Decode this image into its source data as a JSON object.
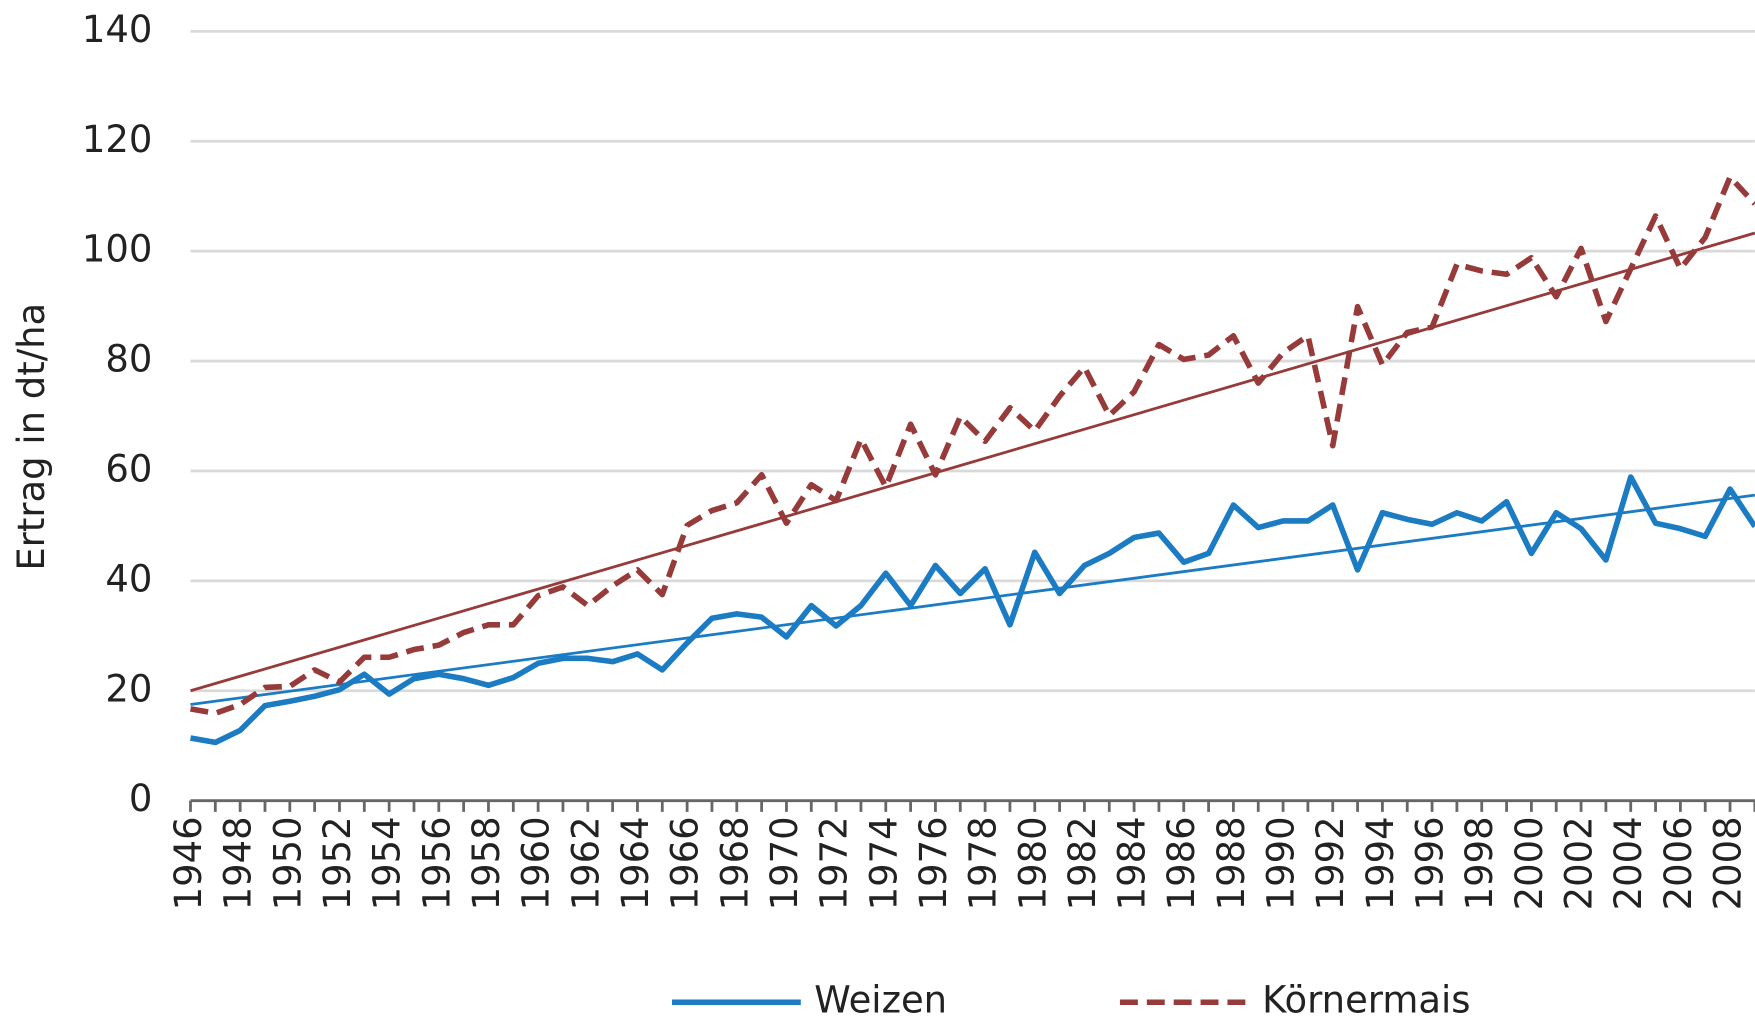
{
  "chart_data": {
    "type": "line",
    "y_label": "Ertrag in dt/ha",
    "categories": [
      "1946",
      null,
      "1948",
      null,
      "1950",
      null,
      "1952",
      null,
      "1954",
      null,
      "1956",
      null,
      "1958",
      null,
      "1960",
      null,
      "1962",
      null,
      "1964",
      null,
      "1966",
      null,
      "1968",
      null,
      "1970",
      null,
      "1972",
      null,
      "1974",
      null,
      "1976",
      null,
      "1978",
      null,
      "1980",
      null,
      "1982",
      null,
      "1984",
      null,
      "1986",
      null,
      "1988",
      null,
      "1990",
      null,
      "1992",
      null,
      "1994",
      null,
      "1996",
      null,
      "1998",
      null,
      "2000",
      null,
      "2002",
      null,
      "2004",
      null,
      "2006",
      null,
      "2008",
      null
    ],
    "series": [
      {
        "name": "Weizen",
        "color": "#1b7bc3",
        "dash": false,
        "values": [
          11.4,
          10.6,
          12.8,
          17.3,
          18.1,
          19,
          20.2,
          23,
          19.4,
          22.2,
          23,
          22.2,
          21,
          22.4,
          25,
          25.9,
          25.9,
          25.3,
          26.7,
          23.8,
          28.7,
          33.2,
          34,
          33.4,
          29.8,
          35.5,
          31.8,
          35.5,
          41.4,
          35.5,
          42.8,
          37.7,
          42.2,
          32,
          45.2,
          37.7,
          42.8,
          45,
          47.9,
          48.7,
          43.4,
          45,
          53.8,
          49.7,
          50.9,
          50.9,
          53.8,
          42,
          52.4,
          51.2,
          50.3,
          52.4,
          50.9,
          54.4,
          45,
          52.4,
          49.5,
          43.8,
          58.9,
          50.5,
          49.5,
          48.1,
          56.7,
          49.9
        ],
        "trend": [
          17.5,
          55.6
        ]
      },
      {
        "name": "Körnermais",
        "color": "#973a3a",
        "dash": true,
        "values": [
          16.7,
          15.9,
          17.5,
          20.6,
          20.8,
          23.8,
          21.6,
          26.1,
          26.1,
          27.5,
          28.3,
          30.6,
          32,
          32,
          37.3,
          38.9,
          35.5,
          39.1,
          42,
          37.5,
          50.1,
          52.8,
          54.2,
          59.3,
          50.5,
          57.5,
          54.6,
          65.8,
          57.1,
          68.5,
          59.3,
          69.9,
          65.4,
          71.5,
          67.3,
          73.6,
          78.9,
          70.1,
          74.4,
          83,
          80.3,
          81.1,
          84.6,
          76,
          81.5,
          84.6,
          64.6,
          89.9,
          79.3,
          85.2,
          86.2,
          97.6,
          96.4,
          95.8,
          98.8,
          91.7,
          100.5,
          87.2,
          96.8,
          106.4,
          96.8,
          102.5,
          113.5,
          108.6
        ],
        "trend": [
          20,
          103.3
        ]
      }
    ],
    "ylim": [
      0,
      140
    ],
    "yticks": [
      0,
      20,
      40,
      60,
      80,
      100,
      120,
      140
    ],
    "grid": true,
    "legend": "bottom"
  }
}
